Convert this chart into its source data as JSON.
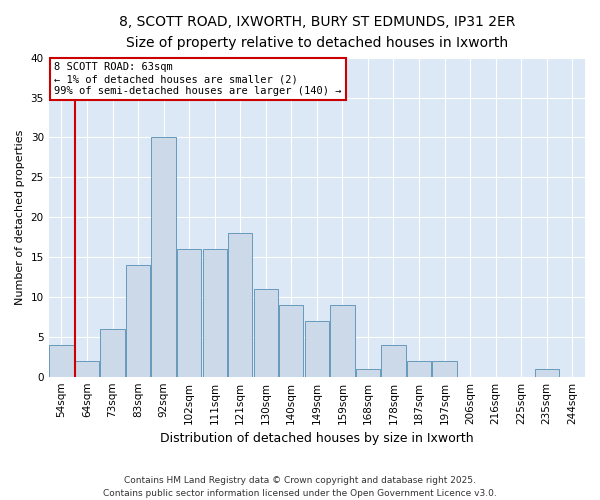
{
  "title1": "8, SCOTT ROAD, IXWORTH, BURY ST EDMUNDS, IP31 2ER",
  "title2": "Size of property relative to detached houses in Ixworth",
  "xlabel": "Distribution of detached houses by size in Ixworth",
  "ylabel": "Number of detached properties",
  "bar_labels": [
    "54sqm",
    "64sqm",
    "73sqm",
    "83sqm",
    "92sqm",
    "102sqm",
    "111sqm",
    "121sqm",
    "130sqm",
    "140sqm",
    "149sqm",
    "159sqm",
    "168sqm",
    "178sqm",
    "187sqm",
    "197sqm",
    "206sqm",
    "216sqm",
    "225sqm",
    "235sqm",
    "244sqm"
  ],
  "bar_values": [
    4,
    2,
    6,
    14,
    30,
    16,
    16,
    18,
    11,
    9,
    7,
    9,
    1,
    4,
    2,
    2,
    0,
    0,
    0,
    1,
    0
  ],
  "bar_color": "#ccd9e8",
  "bar_edge_color": "#6699bb",
  "highlight_color": "#cc0000",
  "ylim": [
    0,
    40
  ],
  "yticks": [
    0,
    5,
    10,
    15,
    20,
    25,
    30,
    35,
    40
  ],
  "bg_color": "#ffffff",
  "plot_bg_color": "#dce8f5",
  "grid_color": "#ffffff",
  "annotation_box_text": "8 SCOTT ROAD: 63sqm\n← 1% of detached houses are smaller (2)\n99% of semi-detached houses are larger (140) →",
  "annotation_box_facecolor": "#ffffff",
  "annotation_box_edgecolor": "#cc0000",
  "footnote": "Contains HM Land Registry data © Crown copyright and database right 2025.\nContains public sector information licensed under the Open Government Licence v3.0.",
  "title1_fontsize": 10,
  "title2_fontsize": 9,
  "xlabel_fontsize": 9,
  "ylabel_fontsize": 8,
  "tick_fontsize": 7.5,
  "footnote_fontsize": 6.5,
  "annot_fontsize": 7.5
}
